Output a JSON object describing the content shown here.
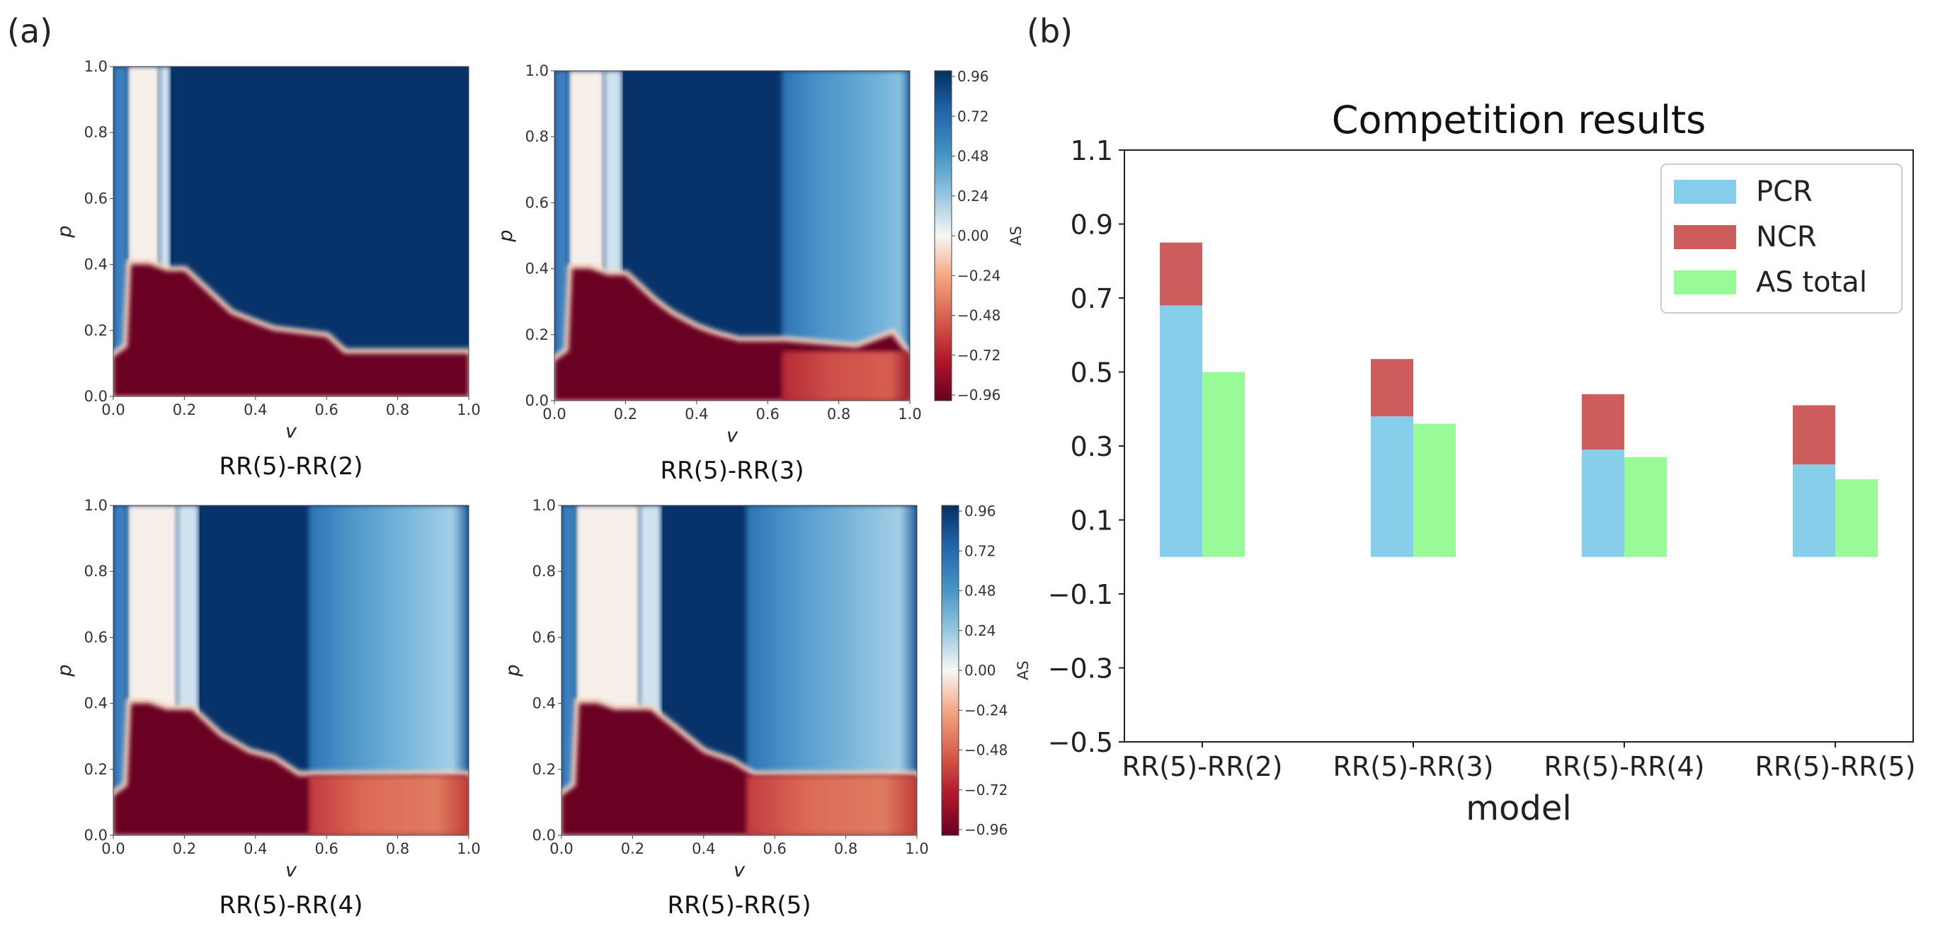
{
  "panels": {
    "a": "(a)",
    "b": "(b)"
  },
  "heatmaps": {
    "x_label": "v",
    "y_label": "p",
    "ticks": [
      "0.0",
      "0.2",
      "0.4",
      "0.6",
      "0.8",
      "1.0"
    ],
    "titles": [
      "RR(5)-RR(2)",
      "RR(5)-RR(3)",
      "RR(5)-RR(4)",
      "RR(5)-RR(5)"
    ],
    "colorbar": {
      "label": "AS",
      "ticks": [
        "0.96",
        "0.72",
        "0.48",
        "0.24",
        "0.00",
        "−0.24",
        "−0.48",
        "−0.72",
        "−0.96"
      ]
    }
  },
  "chart_data": [
    {
      "type": "heatmap",
      "title": "RR(5)-RR(2)",
      "xlabel": "v",
      "ylabel": "p",
      "xlim": [
        0,
        1
      ],
      "ylim": [
        0,
        1
      ],
      "colorbar_label": "AS",
      "colorbar_range": [
        -0.96,
        0.96
      ],
      "colormap": "RdBu"
    },
    {
      "type": "heatmap",
      "title": "RR(5)-RR(3)",
      "xlabel": "v",
      "ylabel": "p",
      "xlim": [
        0,
        1
      ],
      "ylim": [
        0,
        1
      ],
      "colorbar_label": "AS",
      "colorbar_range": [
        -0.96,
        0.96
      ],
      "colormap": "RdBu"
    },
    {
      "type": "heatmap",
      "title": "RR(5)-RR(4)",
      "xlabel": "v",
      "ylabel": "p",
      "xlim": [
        0,
        1
      ],
      "ylim": [
        0,
        1
      ],
      "colorbar_label": "AS",
      "colorbar_range": [
        -0.96,
        0.96
      ],
      "colormap": "RdBu"
    },
    {
      "type": "heatmap",
      "title": "RR(5)-RR(5)",
      "xlabel": "v",
      "ylabel": "p",
      "xlim": [
        0,
        1
      ],
      "ylim": [
        0,
        1
      ],
      "colorbar_label": "AS",
      "colorbar_range": [
        -0.96,
        0.96
      ],
      "colormap": "RdBu"
    },
    {
      "type": "bar",
      "title": "Competition results",
      "xlabel": "model",
      "ylabel": "",
      "categories": [
        "RR(5)-RR(2)",
        "RR(5)-RR(3)",
        "RR(5)-RR(4)",
        "RR(5)-RR(5)"
      ],
      "ylim": [
        -0.5,
        1.1
      ],
      "yticks": [
        -0.5,
        -0.3,
        -0.1,
        0.1,
        0.3,
        0.5,
        0.7,
        0.9,
        1.1
      ],
      "series": [
        {
          "name": "PCR",
          "values": [
            0.68,
            0.38,
            0.29,
            0.25
          ],
          "color": "#87ceeb"
        },
        {
          "name": "NCR",
          "values": [
            0.17,
            0.155,
            0.15,
            0.16
          ],
          "color": "#cd5c5c",
          "stacked_on": "PCR"
        },
        {
          "name": "AS total",
          "values": [
            0.5,
            0.36,
            0.27,
            0.21
          ],
          "color": "#98fb98"
        }
      ],
      "legend": "top-right"
    }
  ]
}
